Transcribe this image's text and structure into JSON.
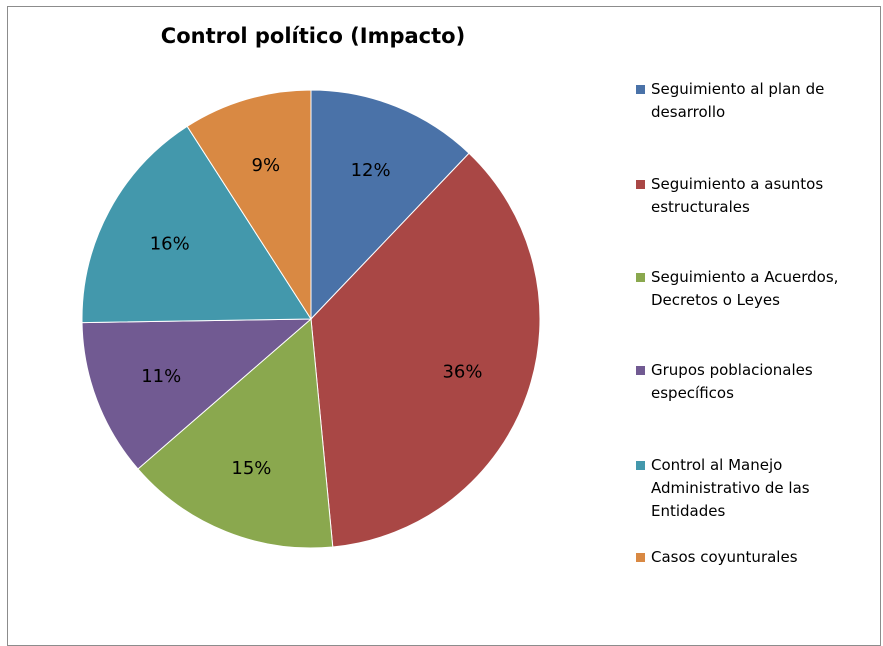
{
  "chart_data": {
    "type": "pie",
    "title": "Control político (Impacto)",
    "categories": [
      "Seguimiento al plan de desarrollo",
      "Seguimiento a asuntos estructurales",
      "Seguimiento a Acuerdos, Decretos o Leyes",
      "Grupos poblacionales específicos",
      "Control al Manejo Administrativo de las Entidades",
      "Casos coyunturales"
    ],
    "values": [
      12,
      36,
      15,
      11,
      16,
      9
    ],
    "labels": [
      "12%",
      "36%",
      "15%",
      "11%",
      "16%",
      "9%"
    ],
    "colors": [
      "#4a72a8",
      "#a94745",
      "#8aa84e",
      "#715a92",
      "#4398ac",
      "#d98943"
    ],
    "legend_position": "right"
  }
}
